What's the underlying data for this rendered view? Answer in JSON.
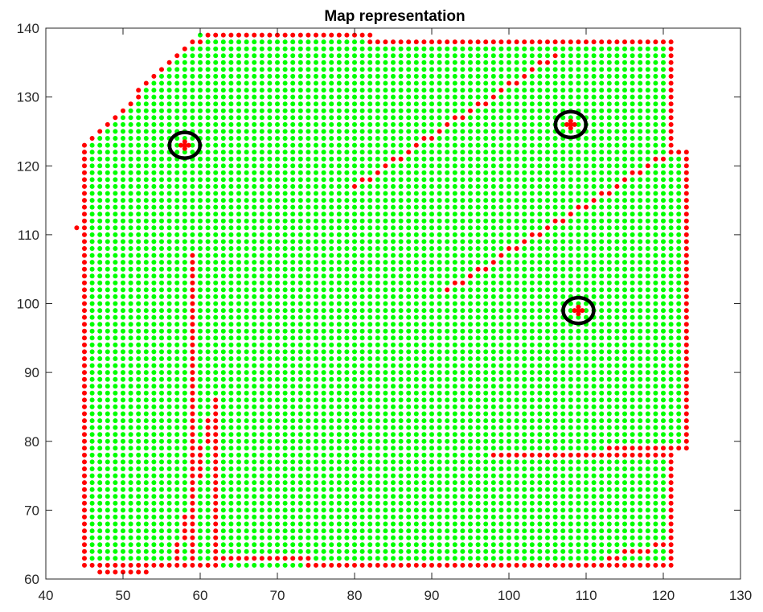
{
  "chart_data": {
    "type": "scatter",
    "title": "Map representation",
    "xlabel": "",
    "ylabel": "",
    "xlim": [
      40,
      130
    ],
    "ylim": [
      60,
      140
    ],
    "xticks": [
      40,
      50,
      60,
      70,
      80,
      90,
      100,
      110,
      120,
      130
    ],
    "yticks": [
      60,
      70,
      80,
      90,
      100,
      110,
      120,
      130,
      140
    ],
    "grid": false,
    "legend": "none",
    "marker": "filled dot, 1-unit grid spacing",
    "colors": {
      "free": "#00ff00",
      "obstacle": "#ff0000",
      "marker_ring": "#000000"
    },
    "series": [
      {
        "color": "#00ff00",
        "note_region": "grid points inside boundary, x 45..121, y 62..138"
      },
      {
        "color": "#ff0000",
        "boundary": [
          {
            "x": [
              45,
              45
            ],
            "y": [
              62,
              123
            ]
          },
          {
            "x": [
              45,
              58
            ],
            "y": [
              123,
              137
            ]
          },
          {
            "x": [
              58,
              61
            ],
            "y": [
              137,
              139
            ]
          },
          {
            "x": [
              61,
              82
            ],
            "y": [
              139,
              139
            ]
          },
          {
            "x": [
              82,
              121
            ],
            "y": [
              138,
              138
            ]
          },
          {
            "x": [
              121,
              121
            ],
            "y": [
              122,
              138
            ]
          },
          {
            "x": [
              121,
              123
            ],
            "y": [
              122,
              122
            ]
          },
          {
            "x": [
              123,
              123
            ],
            "y": [
              79,
              122
            ]
          },
          {
            "x": [
              113,
              123
            ],
            "y": [
              79,
              79
            ]
          },
          {
            "x": [
              121,
              121
            ],
            "y": [
              62,
              79
            ]
          },
          {
            "x": [
              74,
              121
            ],
            "y": [
              62,
              62
            ]
          },
          {
            "x": [
              62,
              74
            ],
            "y": [
              63,
              63
            ]
          },
          {
            "x": [
              62,
              62
            ],
            "y": [
              63,
              86
            ]
          },
          {
            "x": [
              45,
              62
            ],
            "y": [
              62,
              62
            ]
          }
        ],
        "walls": [
          {
            "x": [
              59,
              59
            ],
            "y": [
              63,
              107
            ]
          },
          {
            "x": [
              57,
              62
            ],
            "y": [
              63,
              86
            ]
          },
          {
            "x": [
              80,
              106
            ],
            "y": [
              117,
              136
            ]
          },
          {
            "x": [
              92,
              121
            ],
            "y": [
              102,
              122
            ]
          },
          {
            "x": [
              98,
              121
            ],
            "y": [
              78,
              78
            ]
          },
          {
            "x": [
              113,
              121
            ],
            "y": [
              63,
              65
            ]
          },
          {
            "x": [
              47,
              53
            ],
            "y": [
              61,
              61
            ]
          }
        ],
        "isolated_points": [
          [
            44,
            111
          ]
        ]
      }
    ],
    "annotations": [
      {
        "type": "circle",
        "center": [
          58,
          123
        ]
      },
      {
        "type": "circle",
        "center": [
          108,
          126
        ]
      },
      {
        "type": "circle",
        "center": [
          109,
          99
        ]
      }
    ]
  }
}
